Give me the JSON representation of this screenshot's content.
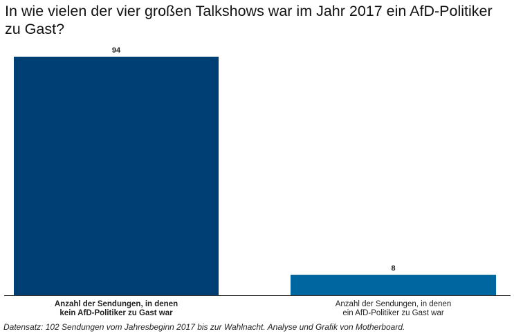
{
  "chart_data": {
    "type": "bar",
    "title": "In wie vielen der vier großen Talkshows war im Jahr 2017 ein AfD-Politiker zu Gast?",
    "categories": [
      [
        "Anzahl der Sendungen, in denen",
        "kein AfD-Politiker zu Gast war"
      ],
      [
        "Anzahl der Sendungen, in denen",
        "ein AfD-Politiker zu Gast war"
      ]
    ],
    "category_bold": [
      true,
      false
    ],
    "values": [
      94,
      8
    ],
    "value_labels": [
      "94",
      "8"
    ],
    "colors": [
      "#003f73",
      "#0066a0"
    ],
    "ylim": [
      0,
      94
    ],
    "grid": false,
    "source": "Datensatz: 102 Sendungen vom Jahresbeginn 2017 bis zur Wahlnacht. Analyse und Grafik von Motherboard."
  }
}
